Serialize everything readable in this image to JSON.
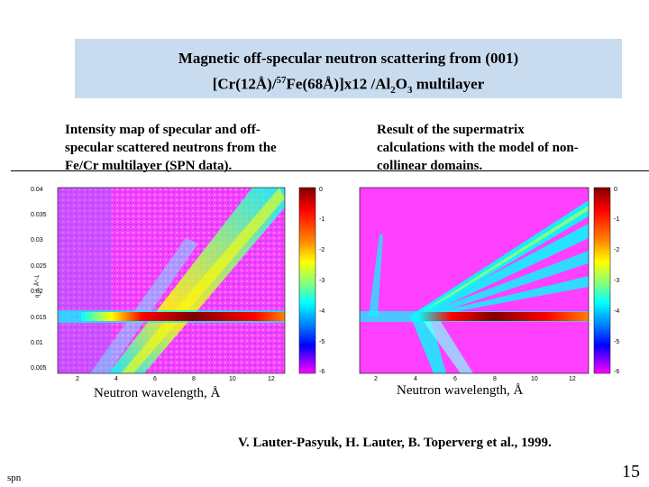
{
  "title": {
    "line1": "Magnetic off-specular neutron scattering from (001)",
    "line2_a": "[Cr(12Å)/",
    "line2_sup": "57",
    "line2_b": "Fe(68Å)]x12 /Al",
    "line2_sub1": "2",
    "line2_c": "O",
    "line2_sub2": "3",
    "line2_d": " multilayer"
  },
  "left_panel": {
    "caption": "Intensity map of specular and off-specular scattered neutrons from the Fe/Cr  multilayer (SPN data).",
    "xlabel": "Neutron wavelength, Å",
    "ylabel": "q_z, Å^-1",
    "yticks": [
      "0.04",
      "0.035",
      "0.03",
      "0.025",
      "0.02",
      "0.015",
      "0.01",
      "0.005"
    ],
    "xticks": [
      "2",
      "4",
      "6",
      "8",
      "10",
      "12"
    ],
    "colorbar_ticks": [
      "0",
      "-1",
      "-2",
      "-3",
      "-4",
      "-5",
      "-6"
    ]
  },
  "right_panel": {
    "caption": "Result of the supermatrix calculations with the model of non-collinear  domains.",
    "xlabel": "Neutron wavelength, Å",
    "xticks": [
      "2",
      "4",
      "6",
      "8",
      "10",
      "12"
    ],
    "colorbar_ticks": [
      "0",
      "-1",
      "-2",
      "-3",
      "-4",
      "-5",
      "-6"
    ]
  },
  "citation": "V. Lauter-Pasyuk, H. Lauter, B. Toperverg et al., 1999.",
  "footer_left": "spn",
  "page_number": "15",
  "colors": {
    "title_bg": "#c9dcef",
    "map_background": "#ff40ff",
    "colormap": [
      "#800000",
      "#ff0000",
      "#ff8000",
      "#ffff00",
      "#80ff80",
      "#00ffff",
      "#0080ff",
      "#0000ff",
      "#ff00ff"
    ]
  }
}
